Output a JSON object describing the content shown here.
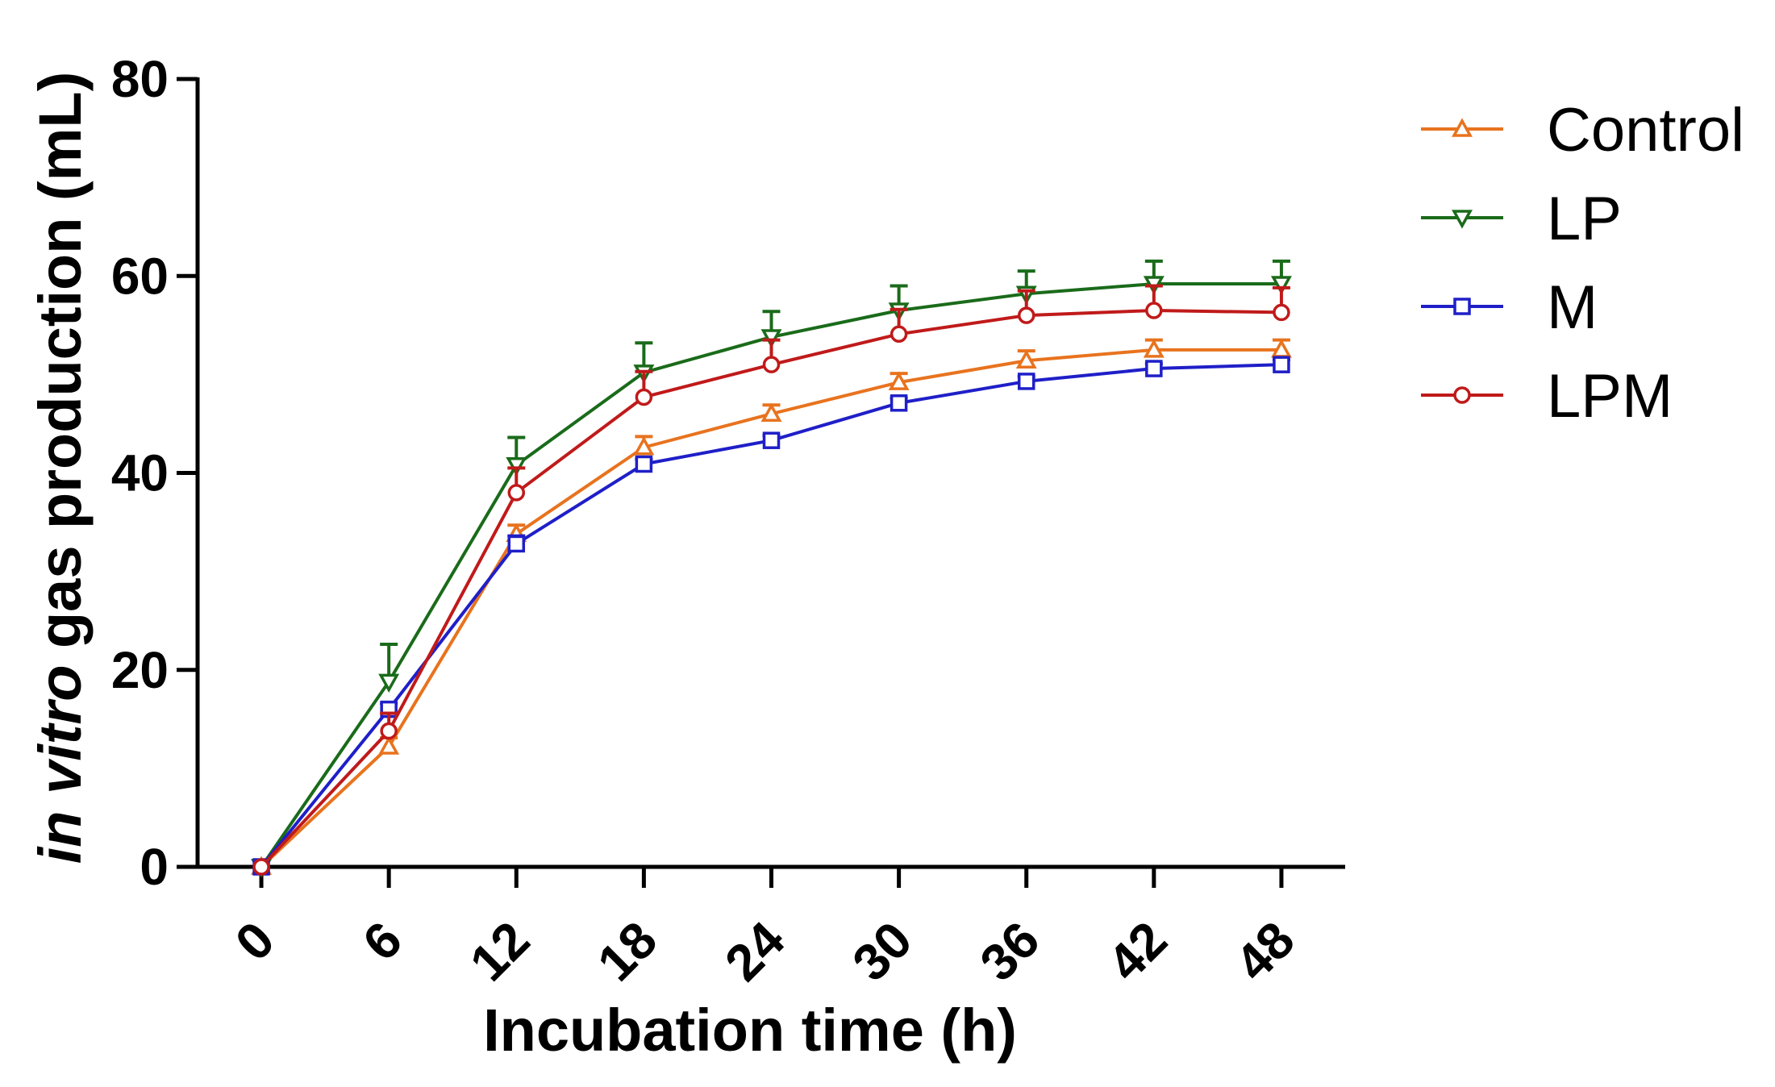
{
  "chart_data": {
    "type": "line",
    "title": "",
    "xlabel": "Incubation time (h)",
    "ylabel_italic": "in vitro",
    "ylabel_rest": " gas production (mL)",
    "x": [
      0,
      6,
      12,
      18,
      24,
      30,
      36,
      42,
      48
    ],
    "x_tick_labels": [
      "0",
      "6",
      "12",
      "18",
      "24",
      "30",
      "36",
      "42",
      "48"
    ],
    "y_ticks": [
      0,
      20,
      40,
      60,
      80
    ],
    "y_tick_labels": [
      "0",
      "20",
      "40",
      "60",
      "80"
    ],
    "xlim": [
      -3,
      51
    ],
    "ylim": [
      0,
      80
    ],
    "grid": false,
    "legend_position": "top-right, outside plot",
    "series": [
      {
        "name": "Control",
        "color": "#E8731E",
        "marker": "triangle-up",
        "values": [
          0,
          12.2,
          33.8,
          42.6,
          46.0,
          49.2,
          51.4,
          52.5,
          52.5
        ],
        "errors": [
          0,
          0.9,
          0.9,
          1.1,
          0.9,
          0.9,
          1.0,
          1.0,
          1.0
        ]
      },
      {
        "name": "LP",
        "color": "#1A6B1A",
        "marker": "triangle-down",
        "values": [
          0,
          18.8,
          40.8,
          50.2,
          53.8,
          56.5,
          58.2,
          59.2,
          59.2
        ],
        "errors": [
          0,
          3.8,
          2.8,
          3.0,
          2.6,
          2.5,
          2.3,
          2.3,
          2.3
        ]
      },
      {
        "name": "M",
        "color": "#1F1FC8",
        "marker": "square",
        "values": [
          0,
          16.0,
          32.8,
          40.9,
          43.3,
          47.1,
          49.3,
          50.6,
          51.0
        ],
        "errors": [
          0,
          0.6,
          0.8,
          0.5,
          0.5,
          0.5,
          0.5,
          0.5,
          0.5
        ]
      },
      {
        "name": "LPM",
        "color": "#C01A1A",
        "marker": "circle",
        "values": [
          0,
          13.8,
          38.0,
          47.7,
          51.0,
          54.1,
          56.0,
          56.5,
          56.3
        ],
        "errors": [
          0,
          1.8,
          2.5,
          2.6,
          2.5,
          2.5,
          2.5,
          2.5,
          2.5
        ]
      }
    ]
  }
}
